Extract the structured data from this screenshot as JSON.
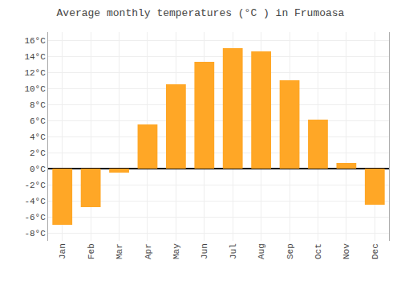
{
  "chart_data": {
    "type": "bar",
    "title": "Average monthly temperatures (°C ) in Frumoasa",
    "categories": [
      "Jan",
      "Feb",
      "Mar",
      "Apr",
      "May",
      "Jun",
      "Jul",
      "Aug",
      "Sep",
      "Oct",
      "Nov",
      "Dec"
    ],
    "values": [
      -7.0,
      -4.8,
      -0.5,
      5.5,
      10.5,
      13.3,
      15.0,
      14.6,
      11.0,
      6.1,
      0.7,
      -4.5
    ],
    "color": "#FFA726",
    "ylim": [
      -9,
      17
    ],
    "yticks": [
      {
        "value": -8,
        "label": "-8°C"
      },
      {
        "value": -6,
        "label": "-6°C"
      },
      {
        "value": -4,
        "label": "-4°C"
      },
      {
        "value": -2,
        "label": "-2°C"
      },
      {
        "value": 0,
        "label": "0°C"
      },
      {
        "value": 2,
        "label": "2°C"
      },
      {
        "value": 4,
        "label": "4°C"
      },
      {
        "value": 6,
        "label": "6°C"
      },
      {
        "value": 8,
        "label": "8°C"
      },
      {
        "value": 10,
        "label": "10°C"
      },
      {
        "value": 12,
        "label": "12°C"
      },
      {
        "value": 14,
        "label": "14°C"
      },
      {
        "value": 16,
        "label": "16°C"
      }
    ],
    "grid": true
  }
}
